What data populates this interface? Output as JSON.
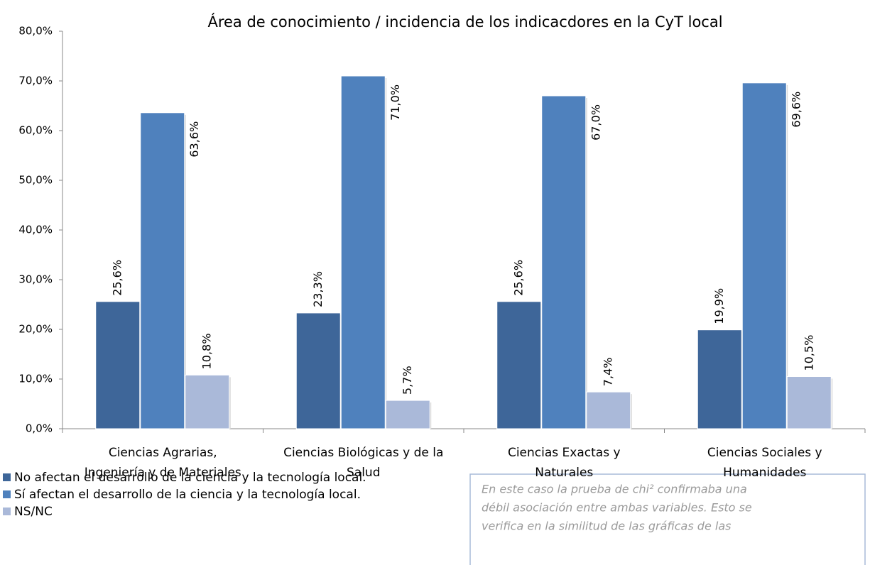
{
  "chart_data": {
    "type": "bar",
    "title": "Área de conocimiento  /  incidencia de los indicacdores en la CyT local",
    "categories": [
      [
        "Ciencias Agrarias,",
        "Ingeniería y de Materiales"
      ],
      [
        "Ciencias Biológicas y de la",
        "Salud"
      ],
      [
        "Ciencias Exactas y",
        "Naturales"
      ],
      [
        "Ciencias Sociales y",
        "Humanidades"
      ]
    ],
    "series": [
      {
        "name": "No afectan el desarrollo de la ciencia y la tecnología local.",
        "color": "#3e6699",
        "values": [
          25.6,
          23.3,
          25.6,
          19.9
        ],
        "value_labels": [
          "25,6%",
          "23,3%",
          "25,6%",
          "19,9%"
        ]
      },
      {
        "name": "Sí afectan el desarrollo de la ciencia y la tecnología local.",
        "color": "#4f81bd",
        "values": [
          63.6,
          71.0,
          67.0,
          69.6
        ],
        "value_labels": [
          "63,6%",
          "71,0%",
          "67,0%",
          "69,6%"
        ]
      },
      {
        "name": "NS/NC",
        "color": "#aab9d9",
        "values": [
          10.8,
          5.7,
          7.4,
          10.5
        ],
        "value_labels": [
          "10,8%",
          "5,7%",
          "7,4%",
          "10,5%"
        ]
      }
    ],
    "ylim": [
      0,
      80
    ],
    "yticks": [
      {
        "value": 0,
        "label": "0,0%"
      },
      {
        "value": 10,
        "label": "10,0%"
      },
      {
        "value": 20,
        "label": "20,0%"
      },
      {
        "value": 30,
        "label": "30,0%"
      },
      {
        "value": 40,
        "label": "40,0%"
      },
      {
        "value": 50,
        "label": "50,0%"
      },
      {
        "value": 60,
        "label": "60,0%"
      },
      {
        "value": 70,
        "label": "70,0%"
      },
      {
        "value": 80,
        "label": "80,0%"
      }
    ],
    "annotation": [
      "En este caso la prueba de chi² confirmaba una",
      "débil asociación entre ambas variables. Esto se",
      "verifica en la similitud de las gráficas de las"
    ]
  }
}
